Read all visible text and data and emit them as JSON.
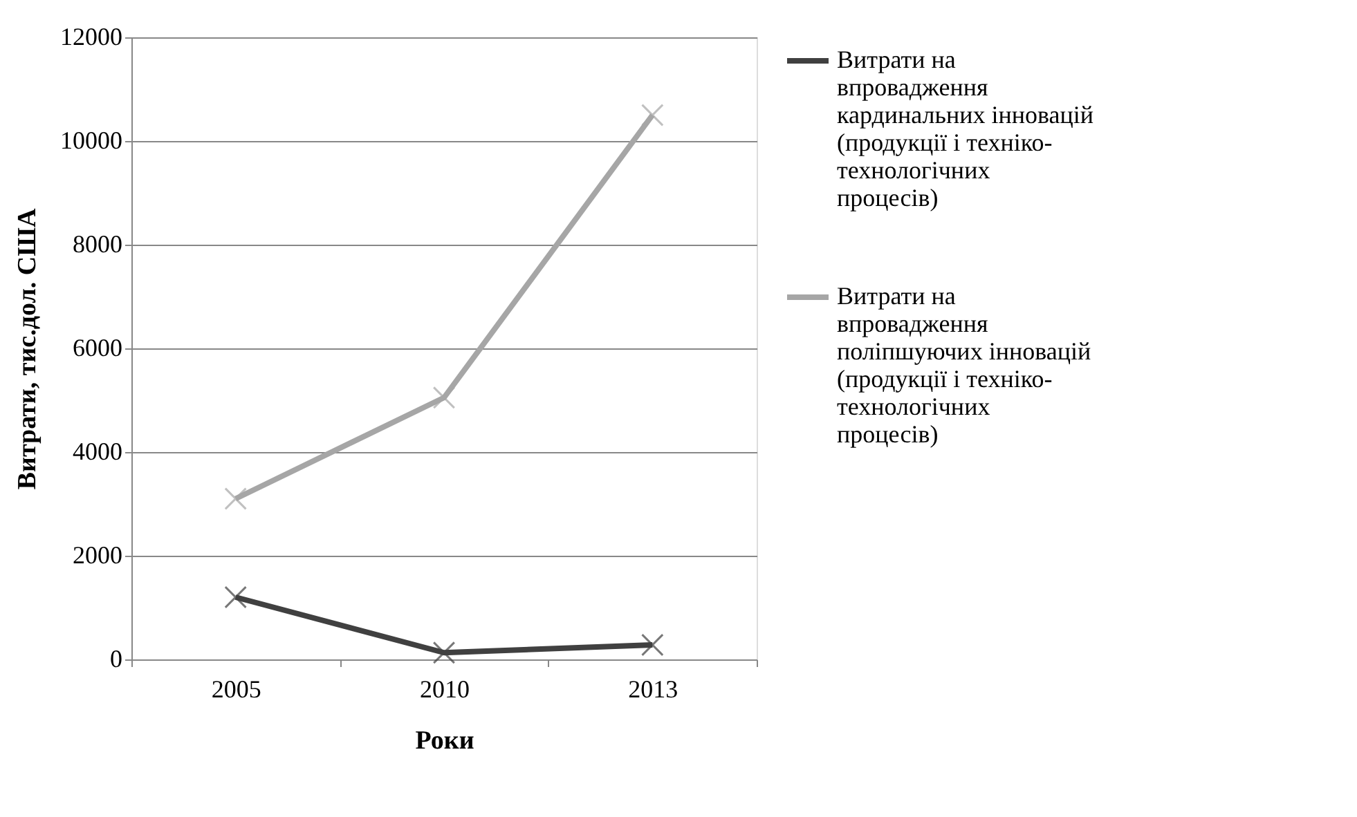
{
  "chart_data": {
    "type": "line",
    "xlabel": "Роки",
    "ylabel": "Витрати, тис.дол. США",
    "categories": [
      "2005",
      "2010",
      "2013"
    ],
    "series": [
      {
        "name": "Витрати на впровадження кардинальних інновацій (продукції і техніко-технологічних процесів)",
        "color": "#404040",
        "values": [
          1200,
          130,
          280
        ]
      },
      {
        "name": "Витрати на впровадження поліпшуючих інновацій (продукції і техніко-технологічних процесів)",
        "color": "#a6a6a6",
        "values": [
          3100,
          5050,
          10500
        ]
      }
    ],
    "ylim": [
      0,
      12000
    ],
    "yticks": [
      0,
      2000,
      4000,
      6000,
      8000,
      10000,
      12000
    ],
    "grid": "y",
    "legend": "right",
    "marker": "cross",
    "line_style": "solid"
  }
}
